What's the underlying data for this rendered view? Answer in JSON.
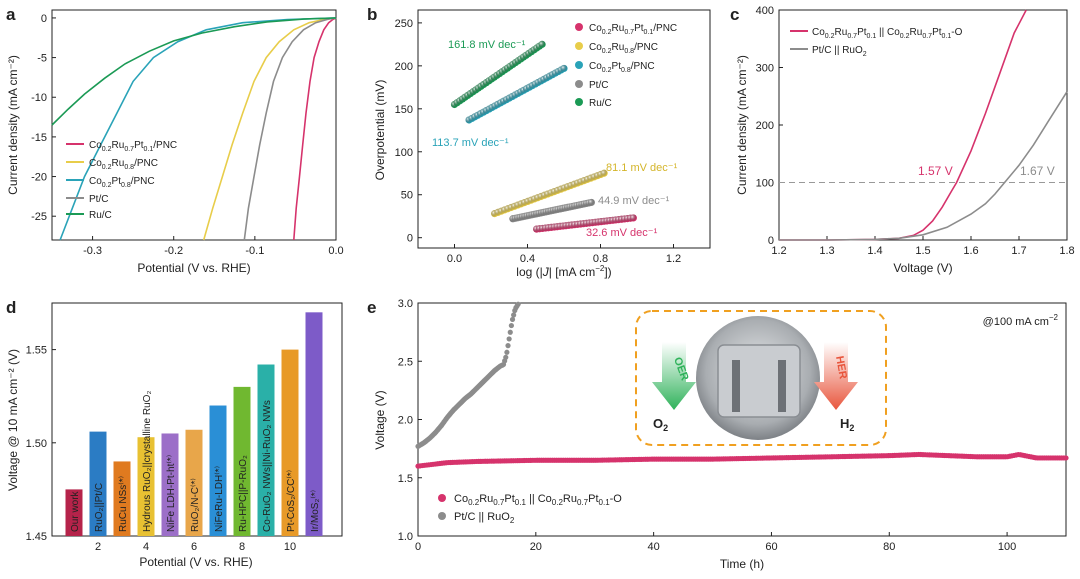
{
  "colors": {
    "CoRuPt": "#d6336c",
    "CoRu": "#e8cd4a",
    "CoPt": "#2aa3b8",
    "PtC": "#8c8c8c",
    "RuC": "#1b9a55",
    "orange": "#f0a020"
  },
  "chart_data": [
    {
      "panel": "a",
      "type": "line",
      "xlabel": "Potential (V vs. RHE)",
      "ylabel": "Current density (mA cm⁻²)",
      "xlim": [
        -0.35,
        0.0
      ],
      "ylim": [
        -28,
        1
      ],
      "xticks": [
        -0.3,
        -0.2,
        -0.1,
        0.0
      ],
      "xtick_labels": [
        "-0.3",
        "-0.2",
        "-0.1",
        "0.0"
      ],
      "yticks": [
        0,
        -5,
        -10,
        -15,
        -20,
        -25
      ],
      "ytick_labels": [
        "0",
        "-5",
        "-10",
        "-15",
        "-20",
        "-25"
      ],
      "legend": {
        "placement": "bottom-left",
        "entries": [
          "Co0.2Ru0.7Pt0.1/PNC",
          "Co0.2Ru0.8/PNC",
          "Co0.2Pt0.8/PNC",
          "Pt/C",
          "Ru/C"
        ]
      },
      "series": [
        {
          "name": "Co0.2Ru0.7Pt0.1/PNC",
          "color_key": "CoRuPt",
          "x": [
            -0.052,
            -0.049,
            -0.045,
            -0.041,
            -0.037,
            -0.032,
            -0.027,
            -0.021,
            -0.015,
            -0.009,
            -0.004,
            0.0
          ],
          "y": [
            -28,
            -24,
            -20,
            -16,
            -12,
            -8,
            -5,
            -3,
            -1.5,
            -0.6,
            -0.2,
            0
          ]
        },
        {
          "name": "Co0.2Ru0.8/PNC",
          "color_key": "CoRu",
          "x": [
            -0.163,
            -0.152,
            -0.14,
            -0.128,
            -0.115,
            -0.101,
            -0.086,
            -0.07,
            -0.052,
            -0.033,
            -0.015,
            0.0
          ],
          "y": [
            -28,
            -24,
            -20,
            -16,
            -12,
            -8,
            -5,
            -3,
            -1.5,
            -0.6,
            -0.2,
            0
          ]
        },
        {
          "name": "Co0.2Pt0.8/PNC",
          "color_key": "CoPt",
          "x": [
            -0.34,
            -0.325,
            -0.31,
            -0.29,
            -0.27,
            -0.25,
            -0.225,
            -0.195,
            -0.16,
            -0.115,
            -0.06,
            0.0
          ],
          "y": [
            -28,
            -24,
            -20,
            -16,
            -12,
            -8,
            -5,
            -3,
            -1.5,
            -0.6,
            -0.2,
            0
          ]
        },
        {
          "name": "Pt/C",
          "color_key": "PtC",
          "x": [
            -0.113,
            -0.108,
            -0.101,
            -0.094,
            -0.086,
            -0.077,
            -0.066,
            -0.054,
            -0.04,
            -0.025,
            -0.011,
            0.0
          ],
          "y": [
            -28,
            -24,
            -20,
            -16,
            -12,
            -8,
            -5,
            -3,
            -1.5,
            -0.6,
            -0.2,
            0
          ]
        },
        {
          "name": "Ru/C",
          "color_key": "RuC",
          "x": [
            -0.35,
            -0.33,
            -0.31,
            -0.285,
            -0.26,
            -0.23,
            -0.2,
            -0.165,
            -0.125,
            -0.085,
            -0.04,
            0.0
          ],
          "y": [
            -13.5,
            -11.5,
            -9.6,
            -7.6,
            -5.8,
            -4.2,
            -2.9,
            -1.9,
            -1.1,
            -0.5,
            -0.15,
            0
          ]
        }
      ]
    },
    {
      "panel": "b",
      "type": "scatter",
      "xlabel": "log (|J| [mA cm⁻²])",
      "ylabel": "Overpotential (mV)",
      "xlim": [
        -0.2,
        1.4
      ],
      "ylim": [
        -12,
        265
      ],
      "xticks": [
        0.0,
        0.4,
        0.8,
        1.2
      ],
      "xtick_labels": [
        "0.0",
        "0.4",
        "0.8",
        "1.2"
      ],
      "yticks": [
        0,
        50,
        100,
        150,
        200,
        250
      ],
      "ytick_labels": [
        "0",
        "50",
        "100",
        "150",
        "200",
        "250"
      ],
      "legend": {
        "placement": "top-right",
        "entries": [
          "Co0.2Ru0.7Pt0.1/PNC",
          "Co0.2Ru0.8/PNC",
          "Co0.2Pt0.8/PNC",
          "Pt/C",
          "Ru/C"
        ]
      },
      "series": [
        {
          "name": "Co0.2Ru0.7Pt0.1/PNC",
          "color_key": "CoRuPt",
          "x_range": [
            0.45,
            0.98
          ],
          "y_range": [
            10,
            23
          ],
          "label": "32.6 mV dec⁻¹"
        },
        {
          "name": "Co0.2Ru0.8/PNC",
          "color_key": "CoRu",
          "x_range": [
            0.22,
            0.82
          ],
          "y_range": [
            28,
            75
          ],
          "label": "81.1 mV dec⁻¹"
        },
        {
          "name": "Co0.2Pt0.8/PNC",
          "color_key": "CoPt",
          "x_range": [
            0.08,
            0.6
          ],
          "y_range": [
            137,
            197
          ],
          "label": "113.7 mV dec⁻¹"
        },
        {
          "name": "Pt/C",
          "color_key": "PtC",
          "x_range": [
            0.32,
            0.75
          ],
          "y_range": [
            22,
            41
          ],
          "label": "44.9 mV dec⁻¹"
        },
        {
          "name": "Ru/C",
          "color_key": "RuC",
          "x_range": [
            0.0,
            0.48
          ],
          "y_range": [
            155,
            225
          ],
          "label": "161.8 mV dec⁻¹"
        }
      ]
    },
    {
      "panel": "c",
      "type": "line",
      "xlabel": "Voltage (V)",
      "ylabel": "Current density (mA cm⁻²)",
      "xlim": [
        1.2,
        1.8
      ],
      "ylim": [
        0,
        400
      ],
      "xticks": [
        1.2,
        1.3,
        1.4,
        1.5,
        1.6,
        1.7,
        1.8
      ],
      "xtick_labels": [
        "1.2",
        "1.3",
        "1.4",
        "1.5",
        "1.6",
        "1.7",
        "1.8"
      ],
      "yticks": [
        0,
        100,
        200,
        300,
        400
      ],
      "ytick_labels": [
        "0",
        "100",
        "200",
        "300",
        "400"
      ],
      "reference_line": {
        "y": 100,
        "style": "dashed"
      },
      "annotations": [
        "1.57 V",
        "1.67 V"
      ],
      "legend": {
        "placement": "top-right",
        "entries": [
          "Co0.2Ru0.7Pt0.1 || Co0.2Ru0.7Pt0.1-O",
          "Pt/C || RuO2"
        ]
      },
      "series": [
        {
          "name": "Co0.2Ru0.7Pt0.1 || Co0.2Ru0.7Pt0.1-O",
          "color_key": "CoRuPt",
          "x": [
            1.2,
            1.3,
            1.4,
            1.45,
            1.48,
            1.5,
            1.52,
            1.54,
            1.56,
            1.57,
            1.6,
            1.63,
            1.66,
            1.69,
            1.715
          ],
          "y": [
            0,
            0,
            1,
            3,
            8,
            17,
            33,
            57,
            86,
            100,
            155,
            220,
            290,
            360,
            400
          ]
        },
        {
          "name": "Pt/C || RuO2",
          "color_key": "PtC",
          "x": [
            1.2,
            1.3,
            1.4,
            1.45,
            1.5,
            1.55,
            1.6,
            1.63,
            1.65,
            1.67,
            1.7,
            1.73,
            1.76,
            1.8
          ],
          "y": [
            0,
            0,
            1,
            3,
            9,
            22,
            45,
            63,
            80,
            100,
            130,
            165,
            205,
            258
          ]
        }
      ]
    },
    {
      "panel": "d",
      "type": "bar",
      "xlabel": "Potential (V vs. RHE)",
      "ylabel": "Voltage @ 10 mA cm⁻² (V)",
      "ylim": [
        1.45,
        1.575
      ],
      "xticks": [
        2,
        4,
        6,
        8,
        10
      ],
      "xtick_labels": [
        "2",
        "4",
        "6",
        "8",
        "10"
      ],
      "yticks": [
        1.45,
        1.5,
        1.55
      ],
      "ytick_labels": [
        "1.45",
        "1.50",
        "1.55"
      ],
      "categories": [
        1,
        2,
        3,
        4,
        5,
        6,
        7,
        8,
        9,
        10,
        11
      ],
      "values": [
        1.475,
        1.506,
        1.49,
        1.503,
        1.505,
        1.507,
        1.52,
        1.53,
        1.542,
        1.55,
        1.57
      ],
      "bar_labels": [
        "Our work",
        "RuO₂||Pt/C",
        "RuCu NSs⁽*⁾",
        "Hydrous RuO₂||crystalline RuO₂",
        "NiFe LDH-Pt-ht⁽*⁾",
        "RuO₂/N-C⁽*⁾",
        "NiFeRu-LDH⁽*⁾",
        "Ru-HPC||P-RuO₂",
        "Co-RuO₂ NWs||Ni-RuO₂ NWs",
        "Pt-CoS₂/CC⁽*⁾",
        "Ir/MoS₂⁽*⁾"
      ],
      "bar_colors": [
        "#b5234a",
        "#2b7cc4",
        "#e07a1f",
        "#e8c132",
        "#9c6fc8",
        "#e8a64a",
        "#2a8fd6",
        "#70b830",
        "#2ab0a8",
        "#e89a28",
        "#7d5bc8"
      ]
    },
    {
      "panel": "e",
      "type": "scatter",
      "xlabel": "Time (h)",
      "ylabel": "Voltage (V)",
      "xlim": [
        0,
        110
      ],
      "ylim": [
        1.0,
        3.0
      ],
      "xticks": [
        0,
        20,
        40,
        60,
        80,
        100
      ],
      "xtick_labels": [
        "0",
        "20",
        "40",
        "60",
        "80",
        "100"
      ],
      "yticks": [
        1.0,
        1.5,
        2.0,
        2.5,
        3.0
      ],
      "ytick_labels": [
        "1.0",
        "1.5",
        "2.0",
        "2.5",
        "3.0"
      ],
      "annotation": "@100 mA cm⁻²",
      "inset_labels": {
        "oer": "OER",
        "her": "HER",
        "o2": "O₂",
        "h2": "H₂"
      },
      "legend": {
        "placement": "bottom-left",
        "entries": [
          "Co0.2Ru0.7Pt0.1 || Co0.2Ru0.7Pt0.1-O",
          "Pt/C || RuO2"
        ]
      },
      "series": [
        {
          "name": "Co0.2Ru0.7Pt0.1 || Co0.2Ru0.7Pt0.1-O",
          "color_key": "CoRuPt",
          "x": [
            0,
            5,
            10,
            20,
            30,
            40,
            50,
            60,
            70,
            80,
            85,
            90,
            95,
            100,
            102,
            105,
            110
          ],
          "y": [
            1.6,
            1.63,
            1.64,
            1.65,
            1.65,
            1.66,
            1.66,
            1.67,
            1.68,
            1.69,
            1.7,
            1.69,
            1.68,
            1.68,
            1.7,
            1.67,
            1.67
          ]
        },
        {
          "name": "Pt/C || RuO2",
          "color_key": "PtC",
          "x": [
            0,
            1,
            2,
            3,
            4,
            5,
            6,
            7,
            8,
            9,
            10,
            11,
            12,
            13,
            14,
            14.5,
            15,
            15.5,
            16,
            16.5,
            17
          ],
          "y": [
            1.77,
            1.8,
            1.84,
            1.89,
            1.95,
            2.02,
            2.08,
            2.13,
            2.18,
            2.22,
            2.27,
            2.32,
            2.37,
            2.42,
            2.46,
            2.47,
            2.55,
            2.7,
            2.85,
            2.95,
            2.99
          ]
        }
      ]
    }
  ],
  "texts": {
    "panel_a": "a",
    "panel_b": "b",
    "panel_c": "c",
    "panel_d": "d",
    "panel_e": "e"
  }
}
